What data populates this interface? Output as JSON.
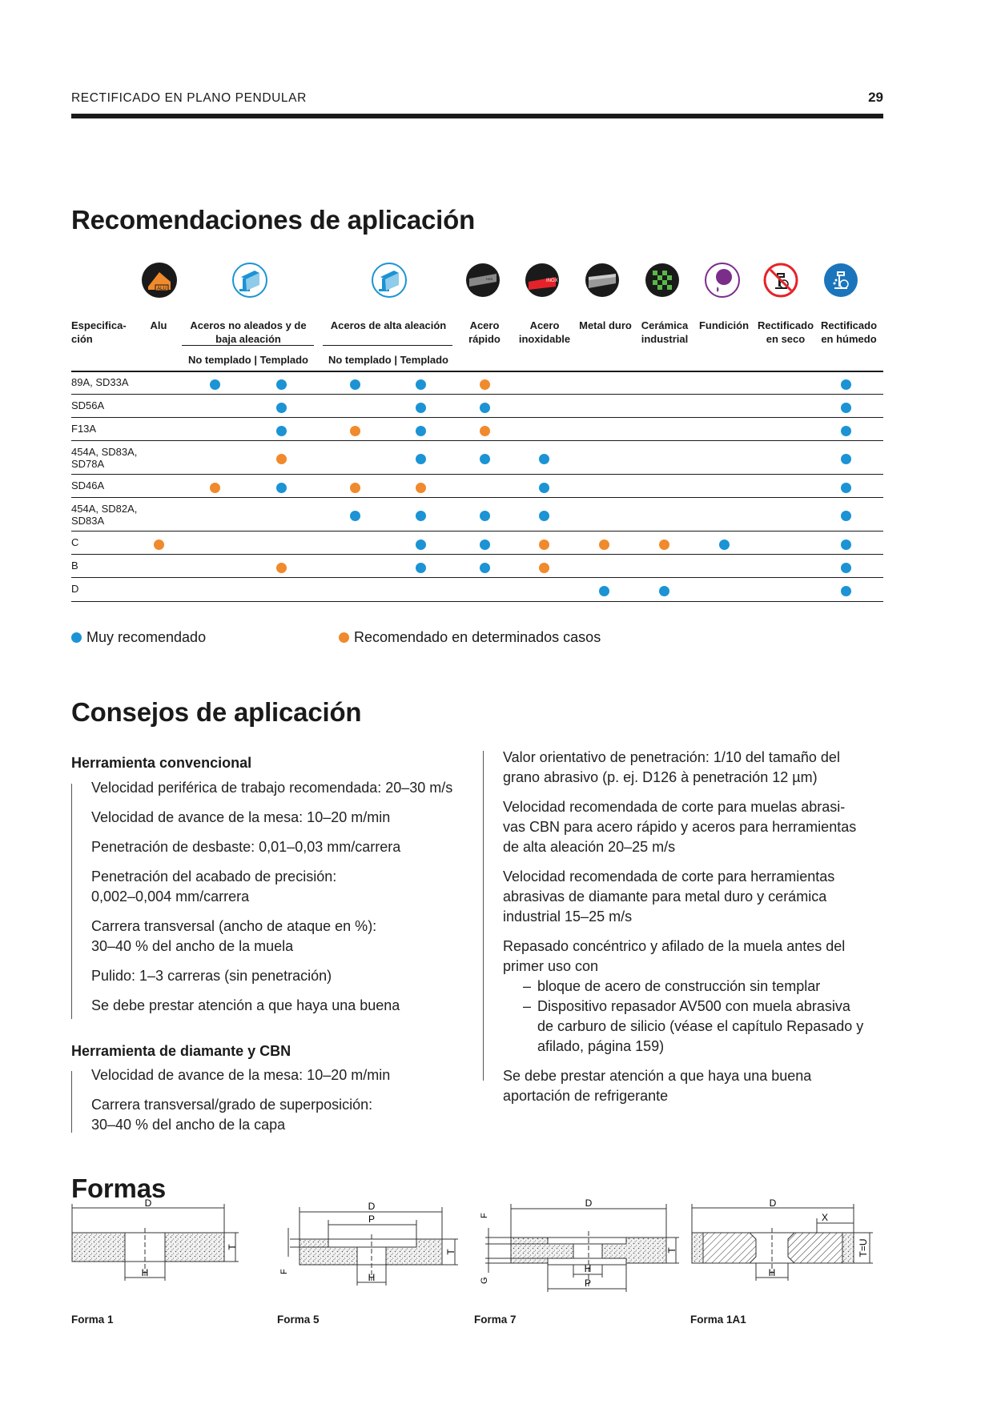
{
  "header": {
    "title": "RECTIFICADO EN PLANO PENDULAR",
    "page": "29"
  },
  "section1": {
    "title": "Recomendaciones de aplicación"
  },
  "table": {
    "icons": [
      {
        "name": "alu-icon",
        "label": "ALU"
      },
      {
        "name": "steel-beam-icon-1",
        "label": ""
      },
      {
        "name": "steel-beam-icon-2",
        "label": ""
      },
      {
        "name": "hss-icon",
        "label": ""
      },
      {
        "name": "inox-icon",
        "label": "INOX"
      },
      {
        "name": "carbide-icon",
        "label": ""
      },
      {
        "name": "ceramic-icon",
        "label": ""
      },
      {
        "name": "cast-iron-icon",
        "label": ""
      },
      {
        "name": "no-coolant-icon",
        "label": ""
      },
      {
        "name": "coolant-icon",
        "label": ""
      }
    ],
    "columns": [
      {
        "l1": "Especifica-",
        "l2": "ción"
      },
      {
        "l1": "Alu",
        "l2": ""
      },
      {
        "l1": "Aceros no aleados y de",
        "l2": "baja aleación"
      },
      {
        "l1": "Aceros de alta aleación",
        "l2": ""
      },
      {
        "l1": "Acero",
        "l2": "rápido"
      },
      {
        "l1": "Acero",
        "l2": "inoxidable"
      },
      {
        "l1": "Metal duro",
        "l2": ""
      },
      {
        "l1": "Cerámica",
        "l2": "industrial"
      },
      {
        "l1": "Fundición",
        "l2": ""
      },
      {
        "l1": "Rectificado",
        "l2": "en seco"
      },
      {
        "l1": "Rectificado",
        "l2": "en húmedo"
      }
    ],
    "subheaders": [
      "No templado | Templado",
      "No templado | Templado"
    ],
    "rows": [
      {
        "spec": [
          "89A, SD33A"
        ],
        "cells": [
          "",
          "B",
          "B",
          "B",
          "B",
          "O",
          "",
          "",
          "",
          "",
          "",
          "B"
        ]
      },
      {
        "spec": [
          "SD56A"
        ],
        "cells": [
          "",
          "",
          "B",
          "",
          "B",
          "B",
          "",
          "",
          "",
          "",
          "",
          "B"
        ]
      },
      {
        "spec": [
          "F13A"
        ],
        "cells": [
          "",
          "",
          "B",
          "O",
          "B",
          "O",
          "",
          "",
          "",
          "",
          "",
          "B"
        ]
      },
      {
        "spec": [
          "454A, SD83A,",
          "SD78A"
        ],
        "cells": [
          "",
          "",
          "O",
          "",
          "B",
          "B",
          "B",
          "",
          "",
          "",
          "",
          "B"
        ]
      },
      {
        "spec": [
          "SD46A"
        ],
        "cells": [
          "",
          "O",
          "B",
          "O",
          "O",
          "",
          "B",
          "",
          "",
          "",
          "",
          "B"
        ]
      },
      {
        "spec": [
          "454A, SD82A,",
          "SD83A"
        ],
        "cells": [
          "",
          "",
          "",
          "B",
          "B",
          "B",
          "B",
          "",
          "",
          "",
          "",
          "B"
        ]
      },
      {
        "spec": [
          "C"
        ],
        "cells": [
          "O",
          "",
          "",
          "",
          "B",
          "B",
          "O",
          "O",
          "O",
          "B",
          "",
          "B"
        ]
      },
      {
        "spec": [
          "B"
        ],
        "cells": [
          "",
          "",
          "O",
          "",
          "B",
          "B",
          "O",
          "",
          "",
          "",
          "",
          "B"
        ]
      },
      {
        "spec": [
          "D"
        ],
        "cells": [
          "",
          "",
          "",
          "",
          "",
          "",
          "",
          "B",
          "B",
          "",
          "",
          "B"
        ]
      }
    ]
  },
  "legend": {
    "blue": "Muy recomendado",
    "orange": "Recomendado en determinados casos"
  },
  "colors": {
    "blue": "#1b93d5",
    "orange": "#f08a2c"
  },
  "section2": {
    "title": "Consejos de aplicación"
  },
  "advice": {
    "conv_title": "Herramienta convencional",
    "conv": [
      [
        "Velocidad periférica de trabajo recomendada: 20–30 m/s"
      ],
      [
        "Velocidad de avance de la mesa: 10–20 m/min"
      ],
      [
        "Penetración de desbaste: 0,01–0,03 mm/carrera"
      ],
      [
        "Penetración del acabado de precisión:",
        "0,002–0,004 mm/carrera"
      ],
      [
        "Carrera transversal (ancho de ataque en %):",
        "30–40 % del ancho de la muela"
      ],
      [
        "Pulido: 1–3 carreras (sin penetración)"
      ],
      [
        "Se debe prestar atención a que haya una buena"
      ]
    ],
    "dia_title": "Herramienta de diamante y CBN",
    "dia": [
      [
        "Velocidad de avance de la mesa: 10–20 m/min"
      ],
      [
        "Carrera transversal/grado de superposición:",
        "30–40 % del ancho de la capa"
      ]
    ],
    "right": [
      [
        "Valor orientativo de penetración: 1/10 del tamaño del",
        "grano abrasivo (p. ej. D126 à penetración 12 µm)"
      ],
      [
        "Velocidad recomendada de corte para muelas abrasi-",
        "vas CBN para acero rápido y aceros para herramientas",
        "de alta aleación 20–25 m/s"
      ],
      [
        "Velocidad recomendada de corte para herramientas",
        "abrasivas de diamante para metal duro y cerámica",
        "industrial 15–25 m/s"
      ],
      [
        "Repasado concéntrico y afilado de la muela antes del",
        "primer uso con"
      ],
      [
        "Se debe prestar atención a que haya una buena",
        "aportación de refrigerante"
      ]
    ],
    "sub": [
      [
        "bloque de acero de construcción sin templar"
      ],
      [
        "Dispositivo repasador AV500 con muela abrasiva",
        "de carburo de silicio (véase el capítulo Repasado y",
        "afilado, página 159)"
      ]
    ]
  },
  "section3": {
    "title": "Formas"
  },
  "formas": {
    "labels": [
      "Forma 1",
      "Forma 5",
      "Forma 7",
      "Forma 1A1"
    ],
    "dims": {
      "D": "D",
      "H": "H",
      "T": "T",
      "P": "P",
      "F": "F",
      "G": "G",
      "X": "X",
      "TU": "T=U"
    }
  }
}
